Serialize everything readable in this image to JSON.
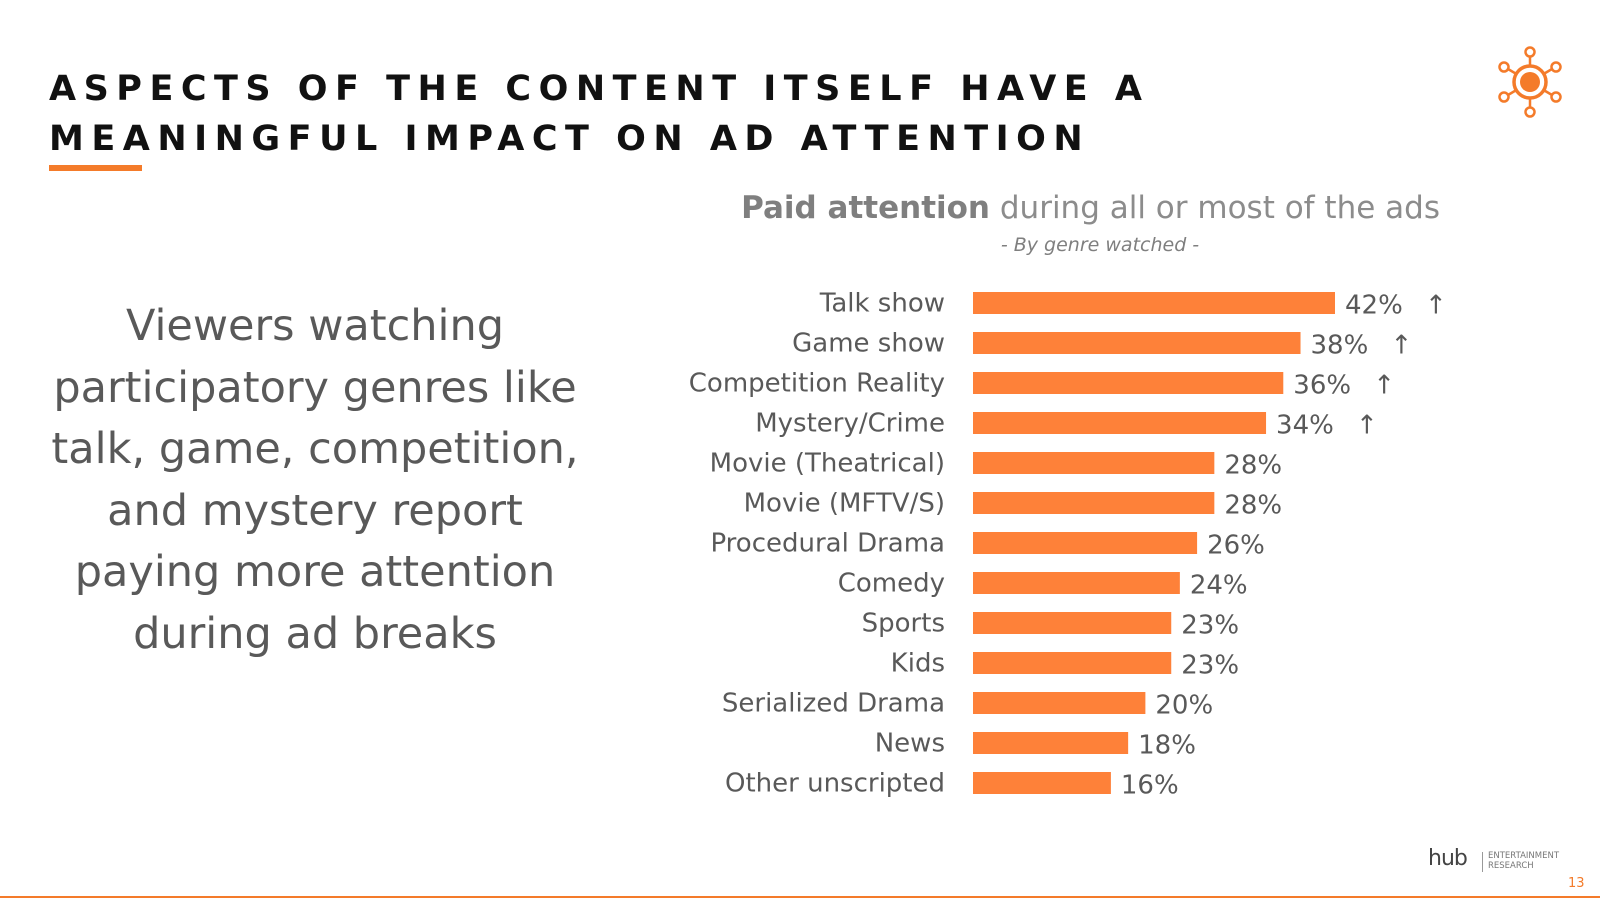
{
  "slide": {
    "title": "ASPECTS OF THE CONTENT ITSELF HAVE A MEANINGFUL IMPACT ON AD ATTENTION",
    "callout": "Viewers watching participatory genres like talk, game, competition, and mystery report paying more attention during ad breaks",
    "page_number": "13",
    "brand_name": "hub",
    "brand_sub_line1": "ENTERTAINMENT",
    "brand_sub_line2": "RESEARCH",
    "accent_color": "#f47b2a"
  },
  "chart_data": {
    "type": "bar",
    "orientation": "horizontal",
    "title_bold": "Paid attention",
    "title_rest": " during all or most of the ads",
    "subtitle": "- By genre watched -",
    "categories": [
      "Talk show",
      "Game show",
      "Competition Reality",
      "Mystery/Crime",
      "Movie (Theatrical)",
      "Movie (MFTV/S)",
      "Procedural Drama",
      "Comedy",
      "Sports",
      "Kids",
      "Serialized Drama",
      "News",
      "Other unscripted"
    ],
    "values": [
      42,
      38,
      36,
      34,
      28,
      28,
      26,
      24,
      23,
      23,
      20,
      18,
      16
    ],
    "value_labels": [
      "42%",
      "38%",
      "36%",
      "34%",
      "28%",
      "28%",
      "26%",
      "24%",
      "23%",
      "23%",
      "20%",
      "18%",
      "16%"
    ],
    "significant": [
      true,
      true,
      true,
      true,
      false,
      false,
      false,
      false,
      false,
      false,
      false,
      false,
      false
    ],
    "significance_marker": "↑",
    "bar_color": "#fe8139",
    "xlim": [
      0,
      42
    ]
  }
}
